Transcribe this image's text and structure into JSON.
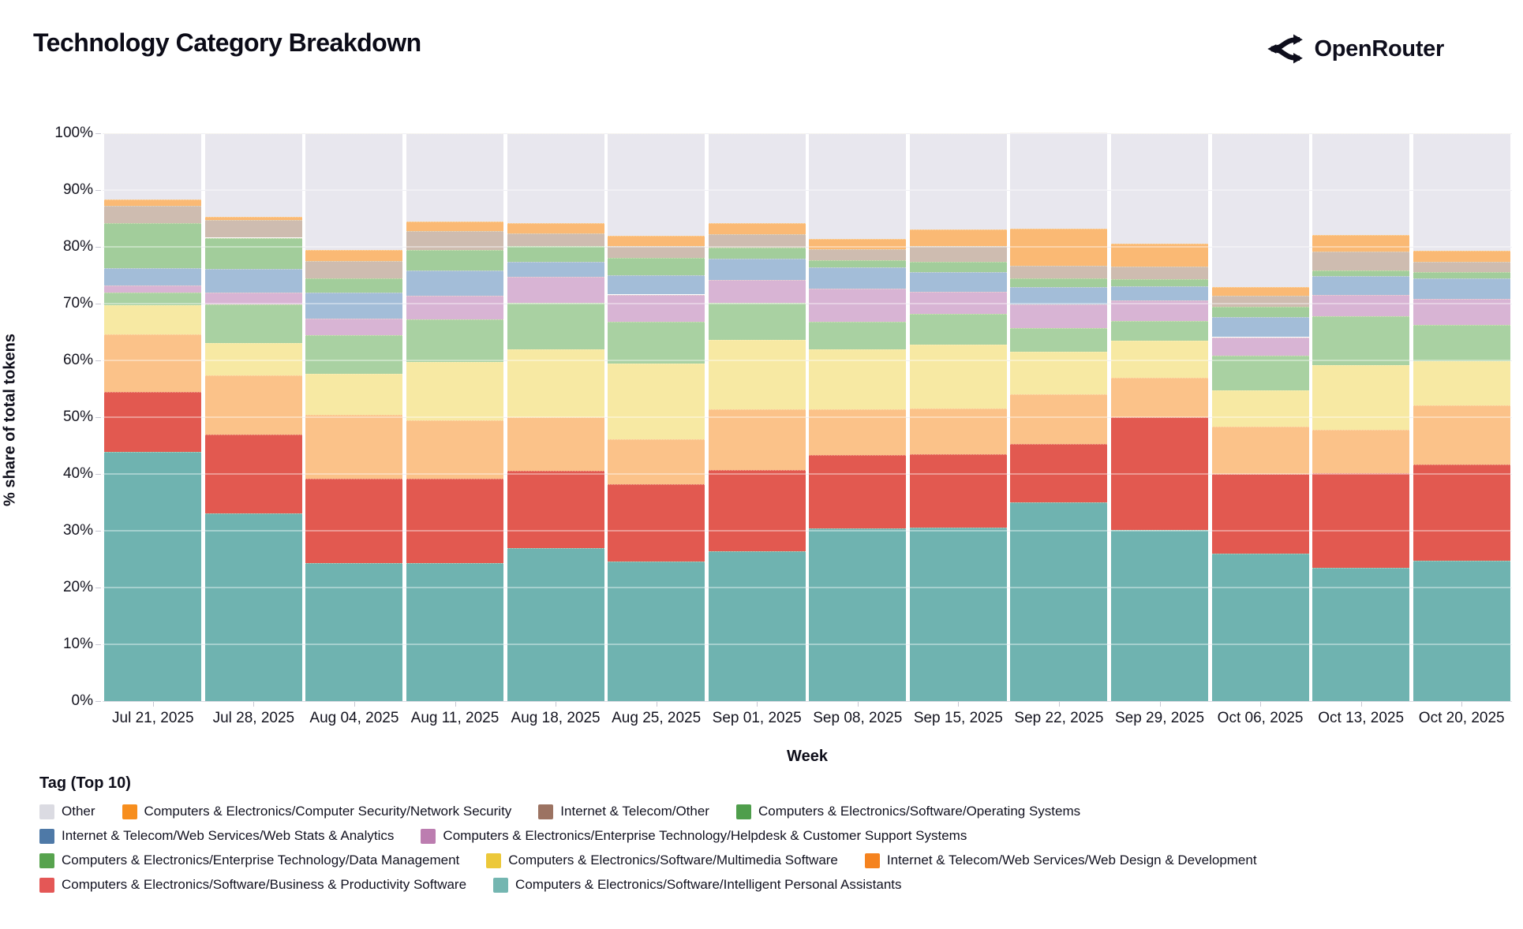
{
  "header": {
    "title": "Technology Category Breakdown",
    "brand": "OpenRouter"
  },
  "chart_data": {
    "type": "bar",
    "stacked": true,
    "xlabel": "Week",
    "ylabel": "% share of total tokens",
    "ylim": [
      0,
      100
    ],
    "ytick_step": 10,
    "ytick_suffix": "%",
    "grid": true,
    "legend_position": "bottom",
    "categories": [
      "Jul 21, 2025",
      "Jul 28, 2025",
      "Aug 04, 2025",
      "Aug 11, 2025",
      "Aug 18, 2025",
      "Aug 25, 2025",
      "Sep 01, 2025",
      "Sep 08, 2025",
      "Sep 15, 2025",
      "Sep 22, 2025",
      "Sep 29, 2025",
      "Oct 06, 2025",
      "Oct 13, 2025",
      "Oct 20, 2025"
    ],
    "series": [
      {
        "id": "ipa",
        "label": "Computers & Electronics/Software/Intelligent Personal Assistants",
        "fill": "#6fb3b0",
        "swatch": "#74b6b1",
        "pattern": false,
        "values": [
          43.9,
          33.1,
          24.3,
          24.3,
          26.9,
          24.6,
          26.4,
          30.4,
          30.5,
          35.0,
          30.2,
          26.0,
          23.5,
          24.7
        ]
      },
      {
        "id": "bp",
        "label": "Computers & Electronics/Software/Business & Productivity Software",
        "fill": "#e25950",
        "swatch": "#e45756",
        "pattern": false,
        "values": [
          10.5,
          13.8,
          14.9,
          14.9,
          13.6,
          13.6,
          14.3,
          13.0,
          13.0,
          10.3,
          19.8,
          14.0,
          16.7,
          17.0
        ]
      },
      {
        "id": "webdesign",
        "label": "Internet & Telecom/Web Services/Web Design & Development",
        "fill": "#fbc289",
        "swatch": "#f5831f",
        "pattern": false,
        "values": [
          10.2,
          10.4,
          11.2,
          10.2,
          9.5,
          7.9,
          10.7,
          8.0,
          8.0,
          8.7,
          7.0,
          8.4,
          7.6,
          10.4
        ]
      },
      {
        "id": "multimedia",
        "label": "Computers & Electronics/Software/Multimedia Software",
        "fill": "#f7e9a3",
        "swatch": "#ecc83a",
        "pattern": false,
        "values": [
          5.1,
          5.8,
          7.2,
          10.3,
          12.0,
          13.3,
          12.2,
          10.6,
          11.3,
          7.5,
          6.5,
          6.3,
          11.4,
          7.8
        ]
      },
      {
        "id": "datamgmt",
        "label": "Computers & Electronics/Enterprise Technology/Data Management",
        "fill": "#a9d1a2",
        "swatch": "#57a34e",
        "pattern": false,
        "values": [
          2.3,
          6.7,
          6.8,
          7.5,
          8.2,
          7.4,
          6.6,
          4.8,
          5.4,
          4.2,
          3.5,
          6.1,
          8.6,
          6.4
        ]
      },
      {
        "id": "helpdesk",
        "label": "Computers & Electronics/Enterprise Technology/Helpdesk & Customer Support Systems",
        "fill": "#d8b4d4",
        "swatch": "#bc7db0",
        "pattern": "fine",
        "values": [
          1.2,
          2.1,
          3.0,
          4.2,
          4.5,
          4.8,
          4.0,
          5.8,
          3.9,
          4.1,
          3.5,
          3.3,
          3.7,
          4.6
        ]
      },
      {
        "id": "webstats",
        "label": "Internet & Telecom/Web Services/Web Stats & Analytics",
        "fill": "#a3bdd8",
        "swatch": "#4e79a7",
        "pattern": false,
        "values": [
          3.0,
          4.2,
          4.5,
          4.5,
          2.7,
          3.4,
          3.7,
          3.8,
          3.5,
          3.1,
          2.5,
          3.6,
          3.4,
          3.5
        ]
      },
      {
        "id": "os",
        "label": "Computers & Electronics/Software/Operating Systems",
        "fill": "#a2cd9b",
        "swatch": "#4f9e4c",
        "pattern": false,
        "values": [
          8.0,
          5.5,
          2.5,
          3.5,
          2.8,
          3.1,
          1.9,
          1.2,
          1.8,
          1.6,
          1.3,
          1.8,
          0.9,
          1.1
        ]
      },
      {
        "id": "itother",
        "label": "Internet & Telecom/Other",
        "fill": "#cebcb0",
        "swatch": "#9c7362",
        "pattern": "dots",
        "values": [
          3.0,
          3.1,
          3.1,
          3.4,
          2.1,
          2.0,
          2.4,
          2.0,
          2.7,
          2.2,
          2.2,
          1.9,
          3.4,
          1.8
        ]
      },
      {
        "id": "netsec",
        "label": "Computers & Electronics/Computer Security/Network Security",
        "fill": "#fab974",
        "swatch": "#f78e1e",
        "pattern": false,
        "values": [
          1.1,
          0.6,
          1.9,
          1.6,
          1.9,
          1.9,
          2.0,
          1.8,
          3.0,
          6.5,
          4.0,
          1.5,
          2.9,
          2.0
        ]
      },
      {
        "id": "other",
        "label": "Other",
        "fill": "#e8e7ee",
        "swatch": "#dbdbe2",
        "pattern": false,
        "values": [
          11.7,
          14.7,
          20.6,
          15.6,
          15.8,
          18.0,
          15.8,
          18.6,
          16.9,
          17.0,
          19.5,
          27.1,
          17.9,
          20.7
        ]
      }
    ],
    "legend": {
      "title": "Tag (Top 10)",
      "rows": [
        [
          "other",
          "netsec",
          "itother",
          "os"
        ],
        [
          "webstats",
          "helpdesk"
        ],
        [
          "datamgmt",
          "multimedia",
          "webdesign"
        ],
        [
          "bp",
          "ipa"
        ]
      ]
    }
  }
}
